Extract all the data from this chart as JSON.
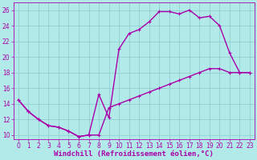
{
  "xlabel": "Windchill (Refroidissement éolien,°C)",
  "bg_color": "#b2eaea",
  "grid_color": "#8acaca",
  "line_color": "#aa00aa",
  "xlim": [
    -0.5,
    23.5
  ],
  "ylim": [
    9.5,
    27
  ],
  "xticks": [
    0,
    1,
    2,
    3,
    4,
    5,
    6,
    7,
    8,
    9,
    10,
    11,
    12,
    13,
    14,
    15,
    16,
    17,
    18,
    19,
    20,
    21,
    22,
    23
  ],
  "yticks": [
    10,
    12,
    14,
    16,
    18,
    20,
    22,
    24,
    26
  ],
  "line1_x": [
    0,
    1,
    2,
    3,
    4,
    5,
    6,
    7,
    8,
    9,
    10,
    11,
    12,
    13,
    14,
    15,
    16,
    17,
    18,
    19,
    20,
    21,
    22,
    23
  ],
  "line1_y": [
    14.5,
    13.0,
    12.0,
    11.2,
    11.0,
    10.5,
    9.8,
    10.0,
    15.2,
    12.2,
    21.0,
    23.0,
    23.5,
    24.5,
    25.8,
    25.8,
    25.5,
    26.0,
    25.0,
    25.2,
    24.0,
    20.5,
    18.0,
    18.0
  ],
  "line2_x": [
    0,
    1,
    2,
    3,
    4,
    5,
    6,
    7,
    8,
    9,
    10,
    11,
    12,
    13,
    14,
    15,
    16,
    17,
    18,
    19,
    20,
    21,
    22,
    23
  ],
  "line2_y": [
    14.5,
    13.0,
    12.0,
    11.2,
    11.0,
    10.5,
    9.8,
    10.0,
    10.0,
    13.5,
    14.0,
    14.5,
    15.0,
    15.5,
    16.0,
    16.5,
    17.0,
    17.5,
    18.0,
    18.5,
    18.5,
    18.0,
    18.0,
    18.0
  ],
  "marker": "+",
  "markersize": 3.5,
  "linewidth": 1.0,
  "xlabel_fontsize": 6.5,
  "tick_fontsize": 5.5,
  "tick_color": "#aa00aa",
  "axis_color": "#aa00aa"
}
